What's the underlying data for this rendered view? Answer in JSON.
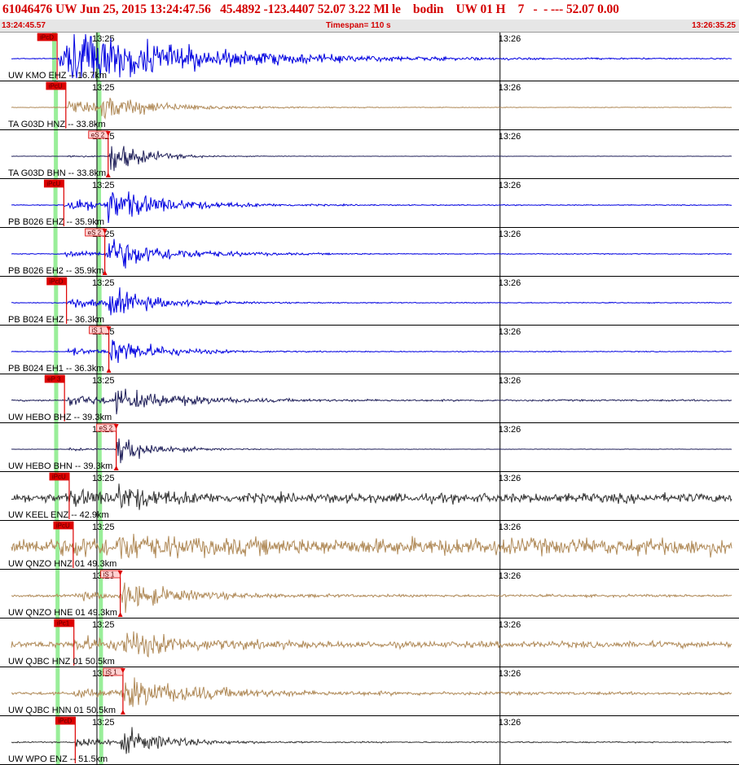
{
  "header": {
    "title": "61046476 UW Jun 25, 2015 13:24:47.56   45.4892 -123.4407 52.07 3.22 Ml le    bodin    UW 01 H    7   -  - --- 52.07 0.00",
    "start_time": "13:24:45.57",
    "timespan": "Timespan= 110 s",
    "end_time": "13:26:35.25"
  },
  "chart_data": {
    "type": "line",
    "title": "61046476 UW Jun 25, 2015 13:24:47.56",
    "x_axis": {
      "units": "s since 13:24:45.57",
      "xlim": [
        0,
        110
      ],
      "tick_labels": [
        "13:25",
        "13:26"
      ]
    },
    "p_marker_s": 8.0,
    "s_marker_s": 14.5,
    "colors": {
      "blue": "#0000e0",
      "tan": "#b08a58",
      "navy": "#20205a",
      "dark": "#333333",
      "pick": "#dd0000",
      "marker": "#99ee99"
    },
    "traces": [
      {
        "label": "UW KMO EHZ -- 16.7km",
        "color": "blue",
        "amp": 1.0,
        "noise": 0.02,
        "pick": "iPcD",
        "pick_t": 8.5,
        "pick_kind": "P",
        "onset": 8.6,
        "s_onset": 9.8,
        "decay": 20,
        "clip": true
      },
      {
        "label": "TA G03D HNZ -- 33.8km",
        "color": "tan",
        "amp": 0.55,
        "noise": 0.015,
        "pick": "iPcU",
        "pick_t": 9.8,
        "pick_kind": "P",
        "onset": 9.8,
        "s_onset": 15.0,
        "decay": 9
      },
      {
        "label": "TA G03D BHN -- 33.8km",
        "color": "navy",
        "amp": 0.9,
        "noise": 0.008,
        "pick": "eS 2",
        "pick_t": 16.1,
        "pick_kind": "S",
        "onset": 9.8,
        "s_onset": 16.1,
        "decay": 5,
        "pamp": 0.08
      },
      {
        "label": "PB B026 EHZ -- 35.9km",
        "color": "blue",
        "amp": 0.75,
        "noise": 0.02,
        "pick": "iPcU",
        "pick_t": 9.5,
        "pick_kind": "P",
        "onset": 9.5,
        "s_onset": 15.8,
        "decay": 9
      },
      {
        "label": "PB B026 EH2 -- 35.9km",
        "color": "blue",
        "amp": 0.8,
        "noise": 0.02,
        "pick": "eS 2",
        "pick_t": 15.6,
        "pick_kind": "S",
        "onset": 9.5,
        "s_onset": 15.6,
        "decay": 9,
        "pamp": 0.25
      },
      {
        "label": "PB B024 EHZ -- 36.3km",
        "color": "blue",
        "amp": 0.65,
        "noise": 0.02,
        "pick": "iPcD",
        "pick_t": 9.9,
        "pick_kind": "P",
        "onset": 9.9,
        "s_onset": 16.0,
        "decay": 7
      },
      {
        "label": "PB B024 EH1 -- 36.3km",
        "color": "blue",
        "amp": 0.7,
        "noise": 0.02,
        "pick": "iS 1",
        "pick_t": 16.2,
        "pick_kind": "S",
        "onset": 9.9,
        "s_onset": 16.2,
        "decay": 7,
        "pamp": 0.3
      },
      {
        "label": "UW HEBO BHZ -- 39.3km",
        "color": "navy",
        "amp": 0.5,
        "noise": 0.04,
        "pick": "eP 3",
        "pick_t": 9.6,
        "pick_kind": "P",
        "onset": 10.0,
        "s_onset": 17.0,
        "decay": 10
      },
      {
        "label": "UW HEBO BHN -- 39.3km",
        "color": "navy",
        "amp": 0.85,
        "noise": 0.01,
        "pick": "eS 2",
        "pick_t": 17.3,
        "pick_kind": "S",
        "onset": 10.0,
        "s_onset": 17.3,
        "decay": 5,
        "pamp": 0.1
      },
      {
        "label": "UW KEEL ENZ -- 42.9km",
        "color": "dark",
        "amp": 0.55,
        "noise": 0.22,
        "pick": "iPcU",
        "pick_t": 10.3,
        "pick_kind": "P",
        "onset": 10.3,
        "s_onset": 17.0,
        "decay": 6
      },
      {
        "label": "UW QNZO HNZ 01 49.3km",
        "color": "tan",
        "amp": 0.5,
        "noise": 0.4,
        "pick": "iPcU",
        "pick_t": 10.9,
        "pick_kind": "P",
        "onset": 10.9,
        "s_onset": 17.5,
        "decay": 6
      },
      {
        "label": "UW QNZO HNE 01 49.3km",
        "color": "tan",
        "amp": 0.7,
        "noise": 0.06,
        "pick": "iS 1",
        "pick_t": 17.9,
        "pick_kind": "S",
        "onset": 10.9,
        "s_onset": 17.9,
        "decay": 8,
        "pamp": 0.3
      },
      {
        "label": "UW QJBC HNZ 01 50.5km",
        "color": "tan",
        "amp": 0.55,
        "noise": 0.15,
        "pick": "iPc1",
        "pick_t": 11.0,
        "pick_kind": "P",
        "onset": 11.0,
        "s_onset": 18.0,
        "decay": 9
      },
      {
        "label": "UW QJBC HNN 01 50.5km",
        "color": "tan",
        "amp": 0.65,
        "noise": 0.07,
        "pick": "iS 1",
        "pick_t": 18.3,
        "pick_kind": "S",
        "onset": 11.0,
        "s_onset": 18.3,
        "decay": 12,
        "pamp": 0.35
      },
      {
        "label": "UW WPO ENZ -- 51.5km",
        "color": "dark",
        "amp": 0.6,
        "noise": 0.03,
        "pick": "iPcD",
        "pick_t": 11.2,
        "pick_kind": "P",
        "onset": 11.2,
        "s_onset": 18.0,
        "decay": 7
      }
    ]
  }
}
